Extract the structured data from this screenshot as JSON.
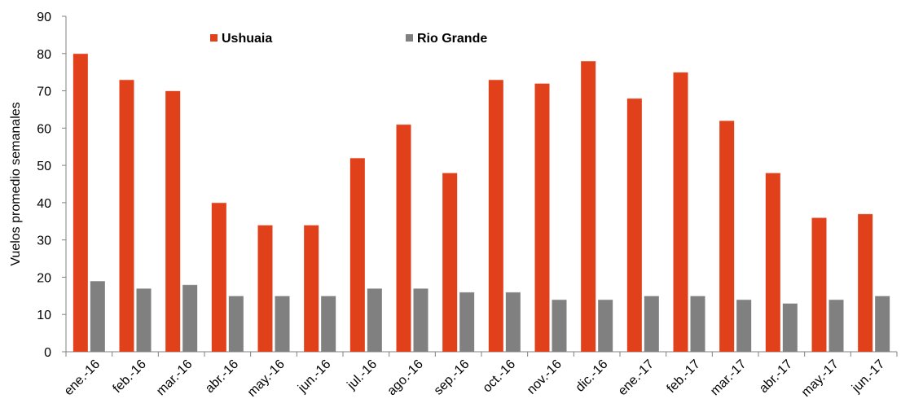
{
  "chart_data": {
    "type": "bar",
    "title": "",
    "xlabel": "",
    "ylabel": "Vuelos promedio semanales",
    "ylim": [
      0,
      90
    ],
    "yticks": [
      0,
      10,
      20,
      30,
      40,
      50,
      60,
      70,
      80,
      90
    ],
    "grid": false,
    "legend_position": "top-left",
    "categories": [
      "ene.-16",
      "feb.-16",
      "mar.-16",
      "abr.-16",
      "may.-16",
      "jun.-16",
      "jul.-16",
      "ago.-16",
      "sep.-16",
      "oct.-16",
      "nov.-16",
      "dic.-16",
      "ene.-17",
      "feb.-17",
      "mar.-17",
      "abr.-17",
      "may.-17",
      "jun.-17"
    ],
    "series": [
      {
        "name": "Ushuaia",
        "color": "#E0411B",
        "values": [
          80,
          73,
          70,
          40,
          34,
          34,
          52,
          61,
          48,
          73,
          72,
          78,
          68,
          75,
          62,
          48,
          36,
          37
        ]
      },
      {
        "name": "Rio Grande",
        "color": "#808080",
        "values": [
          19,
          17,
          18,
          15,
          15,
          15,
          17,
          17,
          16,
          16,
          14,
          14,
          15,
          15,
          14,
          13,
          14,
          15
        ]
      }
    ]
  }
}
